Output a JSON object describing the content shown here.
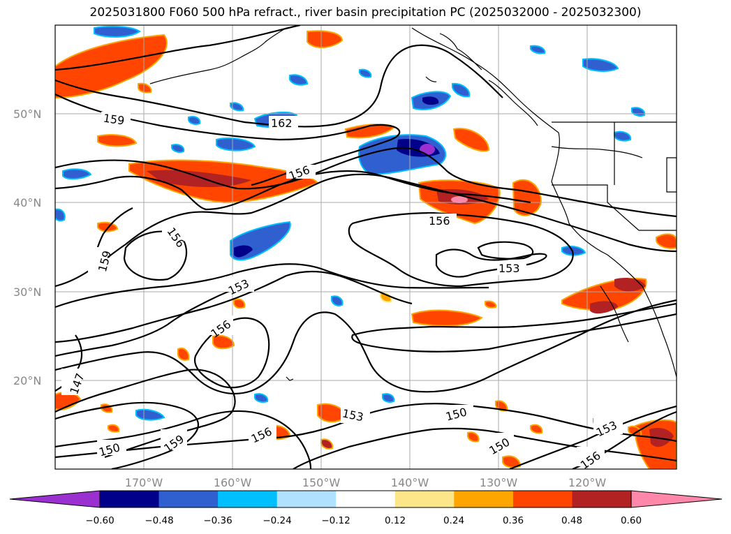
{
  "title": "2025031800 F060 500 hPa refract., river basin precipitation PC (2025032000 - 2025032300)",
  "lat_labels": [
    "50°N",
    "40°N",
    "30°N",
    "20°N"
  ],
  "lon_labels": [
    "170°W",
    "160°W",
    "150°W",
    "140°W",
    "130°W",
    "120°W"
  ],
  "contour_labels": [
    "159",
    "162",
    "156",
    "156",
    "159",
    "156",
    "153",
    "153",
    "156",
    "147",
    "150",
    "159",
    "156",
    "153",
    "150",
    "150",
    "153",
    "156"
  ],
  "colorbar": {
    "ticks": [
      "−0.60",
      "−0.48",
      "−0.36",
      "−0.24",
      "−0.12",
      "0.12",
      "0.24",
      "0.36",
      "0.48",
      "0.60"
    ],
    "colors": [
      "#9b30d0",
      "#00008b",
      "#3060d0",
      "#00bfff",
      "#b0e2ff",
      "#ffffff",
      "#fde68a",
      "#ffa500",
      "#ff4500",
      "#b22222",
      "#ff88aa"
    ]
  },
  "colors": {
    "contour": "#000000",
    "grid": "#aaaaaa",
    "coast": "#000000"
  }
}
